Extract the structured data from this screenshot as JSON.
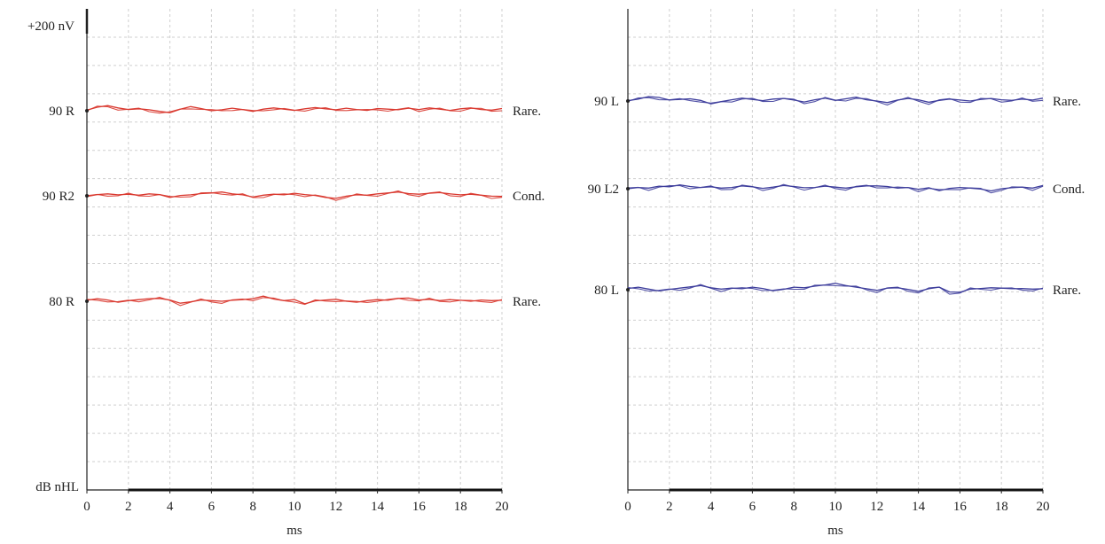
{
  "chart_data": [
    {
      "type": "line",
      "panel": "right-ear",
      "color": "#d9382f",
      "scale_label": "+200 nV",
      "baseline_label": "dB nHL",
      "xlabel": "ms",
      "xlim": [
        0,
        20
      ],
      "x_ticks": [
        "0",
        "2",
        "4",
        "6",
        "8",
        "10",
        "12",
        "14",
        "16",
        "18",
        "20"
      ],
      "grid": true,
      "traces": [
        {
          "label": "90 R",
          "stimulus": "Rare.",
          "y": [
            0.2,
            1.1,
            1.6,
            0.9,
            0.4,
            0.6,
            0.3,
            -0.2,
            -0.6,
            0.5,
            1.3,
            0.7,
            0.0,
            0.3,
            0.8,
            0.4,
            -0.2,
            0.5,
            0.9,
            0.5,
            0.1,
            0.6,
            1.0,
            0.6,
            0.3,
            0.8,
            0.4,
            0.1,
            0.7,
            0.5,
            0.3,
            0.8,
            0.4,
            0.9,
            0.5,
            0.1,
            0.6,
            0.9,
            0.4,
            0.2,
            0.7
          ]
        },
        {
          "label": "90 R2",
          "stimulus": "Cond.",
          "y": [
            -0.2,
            0.4,
            0.6,
            0.3,
            0.5,
            0.2,
            0.6,
            0.4,
            -0.5,
            0.1,
            0.3,
            0.7,
            0.9,
            1.2,
            0.6,
            0.3,
            -0.4,
            0.2,
            0.5,
            0.3,
            0.8,
            0.4,
            0.1,
            -0.5,
            -0.8,
            -0.1,
            0.3,
            0.2,
            0.6,
            0.9,
            1.2,
            0.7,
            0.5,
            0.8,
            1.0,
            0.6,
            0.3,
            0.5,
            0.2,
            -0.1,
            -0.2
          ]
        },
        {
          "label": "80 R",
          "stimulus": "Rare.",
          "y": [
            0.3,
            0.8,
            0.4,
            -0.3,
            0.2,
            0.5,
            0.8,
            0.9,
            0.4,
            -0.6,
            -0.2,
            0.4,
            0.2,
            0.0,
            0.3,
            0.5,
            0.8,
            1.6,
            0.7,
            0.2,
            0.5,
            -0.8,
            0.1,
            0.4,
            0.6,
            0.0,
            -0.3,
            0.2,
            0.5,
            0.3,
            0.9,
            1.0,
            0.4,
            0.6,
            0.2,
            0.5,
            0.3,
            0.0,
            0.4,
            0.2,
            0.3
          ]
        }
      ]
    },
    {
      "type": "line",
      "panel": "left-ear",
      "color": "#3e3e9c",
      "xlabel": "ms",
      "xlim": [
        0,
        20
      ],
      "x_ticks": [
        "0",
        "2",
        "4",
        "6",
        "8",
        "10",
        "12",
        "14",
        "16",
        "18",
        "20"
      ],
      "grid": true,
      "traces": [
        {
          "label": "90 L",
          "stimulus": "Rare.",
          "y": [
            0.1,
            0.6,
            1.4,
            1.1,
            0.3,
            0.5,
            0.7,
            0.2,
            -0.9,
            -0.2,
            0.4,
            0.9,
            0.5,
            0.1,
            0.6,
            0.8,
            0.3,
            -0.3,
            0.4,
            0.9,
            0.2,
            0.7,
            1.2,
            0.4,
            0.0,
            -0.5,
            0.3,
            0.8,
            0.4,
            -0.4,
            0.2,
            0.6,
            0.3,
            0.0,
            0.5,
            0.8,
            0.4,
            0.2,
            0.6,
            0.3,
            0.9
          ]
        },
        {
          "label": "90 L2",
          "stimulus": "Cond.",
          "y": [
            0.0,
            0.4,
            0.2,
            0.8,
            0.6,
            1.2,
            0.7,
            0.4,
            0.6,
            0.2,
            0.4,
            0.9,
            0.6,
            0.1,
            0.5,
            1.0,
            0.7,
            0.3,
            0.4,
            0.8,
            0.5,
            0.2,
            0.6,
            0.9,
            0.9,
            0.7,
            0.2,
            0.4,
            -0.2,
            0.3,
            -0.6,
            0.1,
            0.4,
            0.2,
            -0.1,
            -0.7,
            0.0,
            0.3,
            0.5,
            0.2,
            1.0
          ]
        },
        {
          "label": "80 L",
          "stimulus": "Rare.",
          "y": [
            0.4,
            0.8,
            0.2,
            -0.4,
            0.1,
            0.5,
            0.9,
            1.3,
            0.6,
            0.2,
            0.5,
            0.3,
            0.8,
            0.4,
            -0.3,
            0.1,
            0.8,
            0.6,
            1.1,
            1.5,
            2.0,
            1.3,
            0.8,
            0.3,
            -0.2,
            0.5,
            0.6,
            0.1,
            -0.5,
            0.3,
            0.8,
            -0.7,
            -0.8,
            0.2,
            0.4,
            0.6,
            0.5,
            0.3,
            0.4,
            0.2,
            0.3
          ]
        }
      ]
    }
  ]
}
